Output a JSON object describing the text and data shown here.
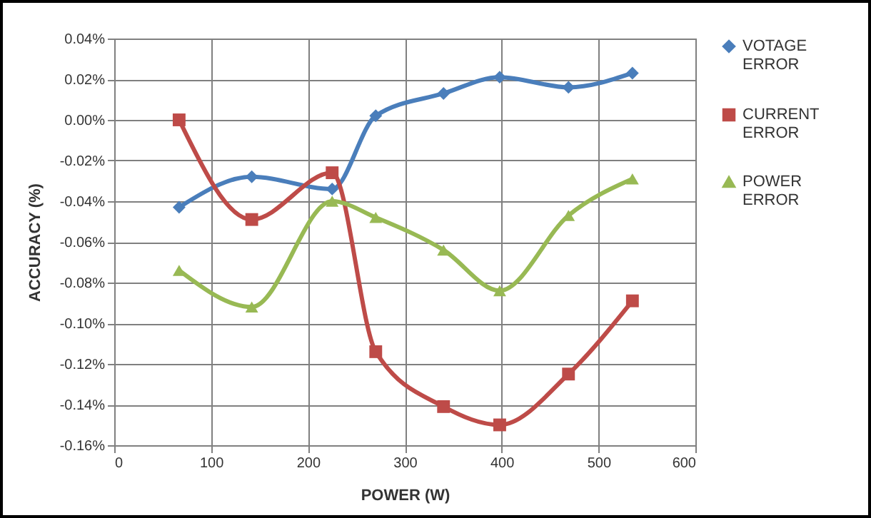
{
  "chart_data": {
    "type": "line",
    "xlabel": "POWER (W)",
    "ylabel": "ACCURACY (%)",
    "x": [
      67,
      142,
      225,
      270,
      340,
      398,
      469,
      535
    ],
    "series": [
      {
        "name": "VOTAGE ERROR",
        "color": "#4a7ebb",
        "marker": "diamond",
        "values": [
          -0.043,
          -0.028,
          -0.034,
          0.002,
          0.013,
          0.021,
          0.016,
          0.023
        ]
      },
      {
        "name": "CURRENT ERROR",
        "color": "#be4b48",
        "marker": "square",
        "values": [
          0.0,
          -0.049,
          -0.026,
          -0.114,
          -0.141,
          -0.15,
          -0.125,
          -0.089
        ]
      },
      {
        "name": "POWER ERROR",
        "color": "#98b954",
        "marker": "triangle",
        "values": [
          -0.074,
          -0.092,
          -0.04,
          -0.048,
          -0.064,
          -0.084,
          -0.047,
          -0.029
        ]
      }
    ],
    "xlim": [
      0,
      600
    ],
    "xticks": [
      0,
      100,
      200,
      300,
      400,
      500,
      600
    ],
    "ylim": [
      -0.16,
      0.04
    ],
    "yticks": [
      {
        "value": -0.16,
        "label": "-0.16%"
      },
      {
        "value": -0.14,
        "label": "-0.14%"
      },
      {
        "value": -0.12,
        "label": "-0.12%"
      },
      {
        "value": -0.1,
        "label": "-0.10%"
      },
      {
        "value": -0.08,
        "label": "-0.08%"
      },
      {
        "value": -0.06,
        "label": "-0.06%"
      },
      {
        "value": -0.04,
        "label": "-0.04%"
      },
      {
        "value": -0.02,
        "label": "-0.02%"
      },
      {
        "value": 0,
        "label": "0.00%"
      },
      {
        "value": 0.02,
        "label": "0.02%"
      },
      {
        "value": 0.04,
        "label": "0.04%"
      }
    ],
    "grid": true,
    "legend": "right",
    "line_style": "solid"
  }
}
